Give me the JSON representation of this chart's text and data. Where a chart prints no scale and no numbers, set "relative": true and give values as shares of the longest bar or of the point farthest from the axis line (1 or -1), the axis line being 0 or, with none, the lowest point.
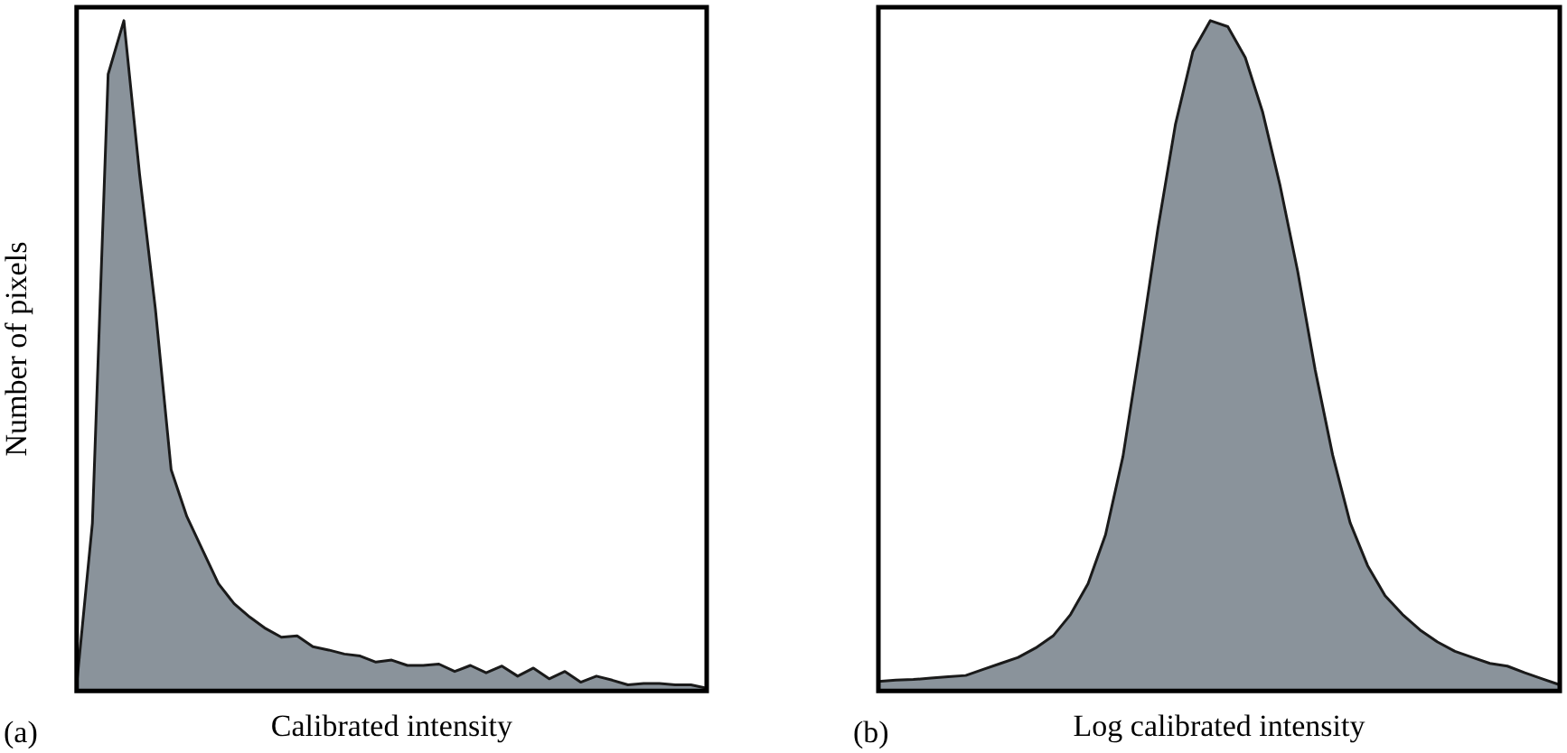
{
  "chart_data": [
    {
      "type": "area",
      "relative": true,
      "ylabel": "Number of pixels",
      "xlabel": "Calibrated intensity",
      "annotations": [
        "(a)"
      ],
      "categories": [
        null,
        null,
        null,
        null,
        null,
        null,
        null,
        null,
        null,
        null,
        null,
        null,
        null,
        null,
        null,
        null,
        null,
        null,
        null,
        null,
        null,
        null,
        null,
        null,
        null,
        null,
        null,
        null,
        null,
        null,
        null,
        null,
        null,
        null,
        null,
        null,
        null,
        null,
        null,
        null,
        null
      ],
      "series": [
        {
          "color": "#8a939b",
          "values": [
            0.009,
            0.25,
            0.92,
            1,
            0.77,
            0.57,
            0.33,
            0.26,
            0.21,
            0.16,
            0.13,
            0.11,
            0.093,
            0.08,
            0.082,
            0.066,
            0.061,
            0.055,
            0.052,
            0.043,
            0.046,
            0.038,
            0.038,
            0.04,
            0.029,
            0.038,
            0.027,
            0.037,
            0.022,
            0.034,
            0.018,
            0.029,
            0.013,
            0.022,
            0.016,
            0.009,
            0.011,
            0.011,
            0.009,
            0.009,
            0.004
          ]
        }
      ]
    },
    {
      "type": "area",
      "relative": true,
      "xlabel": "Log calibrated intensity",
      "annotations": [
        "(b)"
      ],
      "categories": [
        null,
        null,
        null,
        null,
        null,
        null,
        null,
        null,
        null,
        null,
        null,
        null,
        null,
        null,
        null,
        null,
        null,
        null,
        null,
        null,
        null,
        null,
        null,
        null,
        null,
        null,
        null,
        null,
        null,
        null,
        null,
        null,
        null,
        null,
        null,
        null,
        null,
        null,
        null,
        null
      ],
      "series": [
        {
          "color": "#8a939b",
          "values": [
            0.014,
            0.016,
            0.017,
            0.019,
            0.021,
            0.023,
            0.032,
            0.041,
            0.05,
            0.064,
            0.082,
            0.114,
            0.16,
            0.233,
            0.35,
            0.516,
            0.69,
            0.845,
            0.954,
            1,
            0.991,
            0.945,
            0.863,
            0.753,
            0.626,
            0.479,
            0.352,
            0.251,
            0.187,
            0.142,
            0.114,
            0.091,
            0.073,
            0.059,
            0.05,
            0.041,
            0.037,
            0.027,
            0.018,
            0.009
          ]
        }
      ]
    }
  ]
}
